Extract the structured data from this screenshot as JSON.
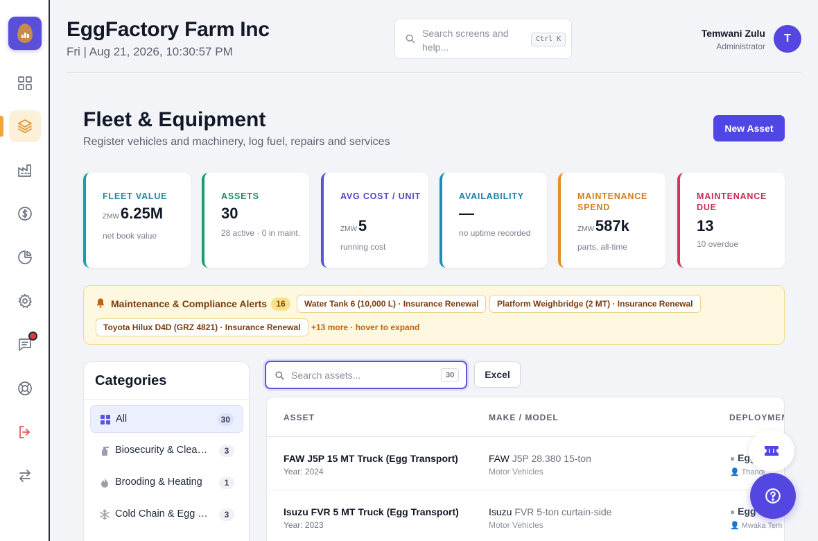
{
  "app": {
    "title": "EggFactory Farm Inc",
    "datetime": "Fri | Aug 21, 2026, 10:30:57 PM"
  },
  "search": {
    "placeholder": "Search screens and help...",
    "shortcut": "Ctrl K"
  },
  "user": {
    "name": "Temwani Zulu",
    "role": "Administrator",
    "initial": "T"
  },
  "sidebar": {
    "items": [
      {
        "icon": "dashboard-grid-icon"
      },
      {
        "icon": "layers-icon",
        "active": true
      },
      {
        "icon": "factory-icon"
      },
      {
        "icon": "dollar-icon"
      },
      {
        "icon": "pie-chart-icon"
      },
      {
        "icon": "gear-icon"
      },
      {
        "icon": "message-icon",
        "badge": true
      },
      {
        "icon": "lifebuoy-icon"
      },
      {
        "icon": "logout-icon"
      },
      {
        "icon": "switch-arrows-icon"
      }
    ]
  },
  "page": {
    "title": "Fleet & Equipment",
    "subtitle": "Register vehicles and machinery, log fuel, repairs and services",
    "new_button": "New Asset"
  },
  "kpis": [
    {
      "label": "FLEET VALUE",
      "currency": "ZMW",
      "value": "6.25M",
      "note": "net book value",
      "color": "#1a9bb0"
    },
    {
      "label": "ASSETS",
      "currency": "",
      "value": "30",
      "note": "28 active · 0 in maint.",
      "color": "#1f9a6a"
    },
    {
      "label": "AVG COST / UNIT",
      "currency": "ZMW",
      "value": "5",
      "note": "running cost",
      "color": "#5b54d6"
    },
    {
      "label": "AVAILABILITY",
      "currency": "",
      "value": "—",
      "note": "no uptime recorded",
      "color": "#1a8fbf"
    },
    {
      "label": "MAINTENANCE SPEND",
      "currency": "ZMW",
      "value": "587k",
      "note": "parts, all-time",
      "color": "#e0912a"
    },
    {
      "label": "MAINTENANCE DUE",
      "currency": "",
      "value": "13",
      "note": "10 overdue",
      "color": "#d9325a"
    }
  ],
  "alerts": {
    "title": "Maintenance & Compliance Alerts",
    "count": "16",
    "chips": [
      "Water Tank 6 (10,000 L) · Insurance Renewal",
      "Platform Weighbridge (2 MT) · Insurance Renewal",
      "Toyota Hilux D4D (GRZ 4821) · Insurance Renewal"
    ],
    "more": "+13 more · hover to expand"
  },
  "categories": {
    "title": "Categories",
    "items": [
      {
        "label": "All",
        "count": "30",
        "icon": "grid-icon",
        "active": true
      },
      {
        "label": "Biosecurity & Cleaning",
        "count": "3",
        "icon": "spray-bottle-icon"
      },
      {
        "label": "Brooding & Heating",
        "count": "1",
        "icon": "flame-icon"
      },
      {
        "label": "Cold Chain & Egg Handling",
        "count": "3",
        "icon": "snowflake-icon"
      }
    ]
  },
  "assets": {
    "search_placeholder": "Search assets...",
    "count": "30",
    "excel_label": "Excel",
    "columns": [
      "ASSET",
      "MAKE / MODEL",
      "DEPLOYMENT"
    ],
    "rows": [
      {
        "name": "FAW J5P 15 MT Truck (Egg Transport)",
        "year": "Year: 2024",
        "make": "FAW",
        "model": "J5P 28.380 15-ton",
        "type": "Motor Vehicles",
        "deployment": "Egg",
        "operator": "Thandi"
      },
      {
        "name": "Isuzu FVR 5 MT Truck (Egg Transport)",
        "year": "Year: 2023",
        "make": "Isuzu",
        "model": "FVR 5-ton curtain-side",
        "type": "Motor Vehicles",
        "deployment": "Egg",
        "operator": "Mwaka Tem"
      }
    ]
  },
  "colors": {
    "accent": "#4f46e5",
    "sidebar_active": "#e0912a",
    "alert_bg": "#fef8e1"
  }
}
